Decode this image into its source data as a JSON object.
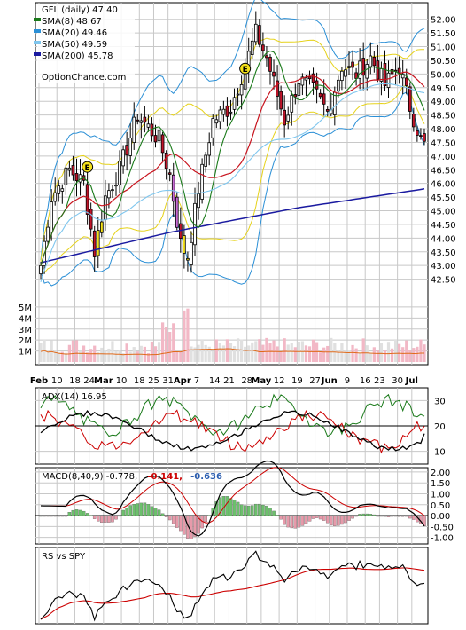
{
  "chart_data": {
    "type": "candlestick",
    "source_label": "OptionChance.com",
    "ticker_title": "GFL (daily) 47.40",
    "legend": [
      {
        "label": "SMA(8) 48.67",
        "color": "#1a7a1a"
      },
      {
        "label": "SMA(20) 49.46",
        "color": "#2a8fd6"
      },
      {
        "label": "SMA(50) 49.59",
        "color": "#7fc6ee"
      },
      {
        "label": "SMA(200) 45.78",
        "color": "#1a1aa0"
      }
    ],
    "price_axis": {
      "ylim": [
        42.0,
        52.25
      ],
      "ticks": [
        "52.00",
        "51.50",
        "51.00",
        "50.50",
        "50.00",
        "49.50",
        "49.00",
        "48.50",
        "48.00",
        "47.50",
        "47.00",
        "46.50",
        "46.00",
        "45.50",
        "45.00",
        "44.50",
        "44.00",
        "43.50",
        "43.00",
        "42.50"
      ]
    },
    "volume_axis": {
      "ticks": [
        "5M",
        "4M",
        "3M",
        "2M",
        "1M"
      ],
      "ylim": [
        0,
        5.8
      ]
    },
    "x_labels": [
      {
        "label": "Feb",
        "bold": true
      },
      {
        "label": "10"
      },
      {
        "label": "18"
      },
      {
        "label": "24"
      },
      {
        "label": "Mar",
        "bold": true
      },
      {
        "label": "10"
      },
      {
        "label": "18"
      },
      {
        "label": "25"
      },
      {
        "label": "31"
      },
      {
        "label": "Apr",
        "bold": true
      },
      {
        "label": "7"
      },
      {
        "label": "14"
      },
      {
        "label": "21"
      },
      {
        "label": "28"
      },
      {
        "label": "May",
        "bold": true
      },
      {
        "label": "12"
      },
      {
        "label": "19"
      },
      {
        "label": "27"
      },
      {
        "label": "Jun",
        "bold": true
      },
      {
        "label": "9"
      },
      {
        "label": "16"
      },
      {
        "label": "23"
      },
      {
        "label": "30"
      },
      {
        "label": "Jul",
        "bold": true
      }
    ],
    "earnings_markers": [
      {
        "label": "E",
        "value": 46.6
      },
      {
        "label": "E",
        "value": 50.2
      }
    ],
    "sma200": [
      43.1,
      44.2,
      45.1,
      45.8
    ],
    "adx": {
      "label": "ADX(14) 16.95",
      "ticks": [
        "30",
        "20",
        "10"
      ],
      "ylim": [
        5,
        35
      ]
    },
    "macd": {
      "label": "MACD(8,40,9) -0.778,",
      "signal_text": "-0.141,",
      "hist_text": "-0.636",
      "signal_color": "#cc0000",
      "hist_color": "#2a5db0",
      "ticks": [
        "2.00",
        "1.50",
        "1.00",
        "0.50",
        "0.00",
        "-0.50",
        "-1.00"
      ],
      "ylim": [
        -1.3,
        2.2
      ]
    },
    "rs": {
      "label": "RS vs SPY"
    }
  }
}
